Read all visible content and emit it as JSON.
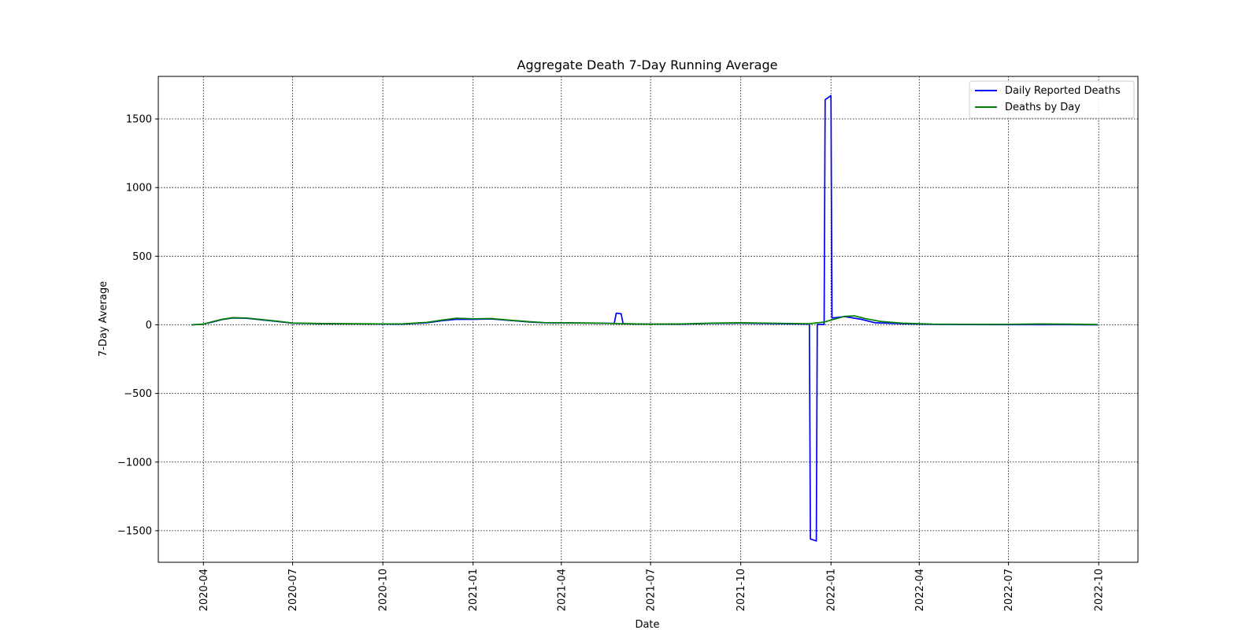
{
  "chart_data": {
    "type": "line",
    "title": "Aggregate Death 7-Day Running Average",
    "xlabel": "Date",
    "ylabel": "7-Day Average",
    "xlim": [
      "2020-02-15",
      "2022-11-10"
    ],
    "ylim": [
      -1730,
      1810
    ],
    "grid": true,
    "legend_position": "top-right",
    "x_ticks": [
      "2020-04",
      "2020-07",
      "2020-10",
      "2021-01",
      "2021-04",
      "2021-07",
      "2021-10",
      "2022-01",
      "2022-04",
      "2022-07",
      "2022-10"
    ],
    "y_ticks": [
      -1500,
      -1000,
      -500,
      0,
      500,
      1000,
      1500
    ],
    "y_tick_labels": [
      "−1500",
      "−1000",
      "−500",
      "0",
      "500",
      "1000",
      "1500"
    ],
    "series": [
      {
        "name": "Daily Reported Deaths",
        "color": "#0000ff",
        "points": [
          [
            "2020-03-20",
            0
          ],
          [
            "2020-04-01",
            5
          ],
          [
            "2020-04-10",
            20
          ],
          [
            "2020-04-20",
            38
          ],
          [
            "2020-05-01",
            50
          ],
          [
            "2020-05-15",
            48
          ],
          [
            "2020-06-01",
            35
          ],
          [
            "2020-06-15",
            25
          ],
          [
            "2020-07-01",
            12
          ],
          [
            "2020-08-01",
            8
          ],
          [
            "2020-09-01",
            7
          ],
          [
            "2020-10-01",
            6
          ],
          [
            "2020-10-20",
            5
          ],
          [
            "2020-11-15",
            15
          ],
          [
            "2020-12-01",
            30
          ],
          [
            "2020-12-15",
            40
          ],
          [
            "2021-01-01",
            40
          ],
          [
            "2021-01-20",
            43
          ],
          [
            "2021-02-10",
            30
          ],
          [
            "2021-03-01",
            20
          ],
          [
            "2021-03-15",
            15
          ],
          [
            "2021-04-15",
            13
          ],
          [
            "2021-05-10",
            12
          ],
          [
            "2021-05-25",
            10
          ],
          [
            "2021-05-27",
            85
          ],
          [
            "2021-06-01",
            80
          ],
          [
            "2021-06-03",
            8
          ],
          [
            "2021-07-01",
            5
          ],
          [
            "2021-08-01",
            5
          ],
          [
            "2021-09-01",
            10
          ],
          [
            "2021-10-01",
            12
          ],
          [
            "2021-11-15",
            8
          ],
          [
            "2021-12-10",
            5
          ],
          [
            "2021-12-11",
            -1560
          ],
          [
            "2021-12-17",
            -1575
          ],
          [
            "2021-12-18",
            2
          ],
          [
            "2021-12-25",
            2
          ],
          [
            "2021-12-26",
            1640
          ],
          [
            "2022-01-01",
            1670
          ],
          [
            "2022-01-02",
            50
          ],
          [
            "2022-01-15",
            60
          ],
          [
            "2022-02-01",
            40
          ],
          [
            "2022-02-15",
            15
          ],
          [
            "2022-03-15",
            8
          ],
          [
            "2022-04-15",
            3
          ],
          [
            "2022-05-15",
            2
          ],
          [
            "2022-07-01",
            1
          ],
          [
            "2022-09-01",
            1
          ],
          [
            "2022-09-30",
            0
          ]
        ]
      },
      {
        "name": "Deaths by Day",
        "color": "#008000",
        "points": [
          [
            "2020-03-20",
            0
          ],
          [
            "2020-04-01",
            5
          ],
          [
            "2020-04-10",
            22
          ],
          [
            "2020-04-20",
            40
          ],
          [
            "2020-05-01",
            52
          ],
          [
            "2020-05-15",
            50
          ],
          [
            "2020-06-01",
            37
          ],
          [
            "2020-06-15",
            27
          ],
          [
            "2020-07-01",
            13
          ],
          [
            "2020-08-01",
            9
          ],
          [
            "2020-09-01",
            8
          ],
          [
            "2020-10-01",
            7
          ],
          [
            "2020-10-20",
            6
          ],
          [
            "2020-11-15",
            18
          ],
          [
            "2020-12-01",
            35
          ],
          [
            "2020-12-15",
            48
          ],
          [
            "2021-01-01",
            44
          ],
          [
            "2021-01-20",
            46
          ],
          [
            "2021-02-10",
            32
          ],
          [
            "2021-03-01",
            22
          ],
          [
            "2021-03-15",
            16
          ],
          [
            "2021-04-15",
            14
          ],
          [
            "2021-05-10",
            12
          ],
          [
            "2021-06-01",
            8
          ],
          [
            "2021-07-01",
            5
          ],
          [
            "2021-08-01",
            6
          ],
          [
            "2021-09-01",
            12
          ],
          [
            "2021-10-01",
            15
          ],
          [
            "2021-11-15",
            10
          ],
          [
            "2021-12-10",
            8
          ],
          [
            "2021-12-25",
            20
          ],
          [
            "2022-01-01",
            35
          ],
          [
            "2022-01-15",
            62
          ],
          [
            "2022-01-25",
            65
          ],
          [
            "2022-02-05",
            45
          ],
          [
            "2022-02-20",
            25
          ],
          [
            "2022-03-15",
            12
          ],
          [
            "2022-04-15",
            5
          ],
          [
            "2022-05-15",
            4
          ],
          [
            "2022-07-01",
            4
          ],
          [
            "2022-08-01",
            6
          ],
          [
            "2022-09-01",
            5
          ],
          [
            "2022-09-30",
            2
          ]
        ]
      }
    ]
  }
}
